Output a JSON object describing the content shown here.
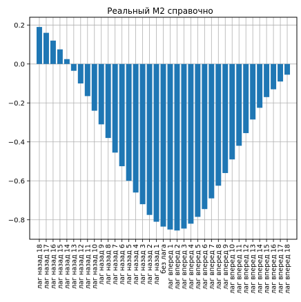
{
  "chart_data": {
    "type": "bar",
    "title": "Реальный М2 справочно",
    "xlabel": "",
    "ylabel": "",
    "ylim": [
      -0.9,
      0.24
    ],
    "yticks": [
      0.2,
      0.0,
      -0.2,
      -0.4,
      -0.6,
      -0.8
    ],
    "ytick_labels": [
      "0.2",
      "0.0",
      "−0.2",
      "−0.4",
      "−0.6",
      "−0.8"
    ],
    "grid": true,
    "bar_color": "#1f77b4",
    "categories": [
      "лаг назад 18",
      "лаг назад 17",
      "лаг назад 16",
      "лаг назад 15",
      "лаг назад 14",
      "лаг назад 13",
      "лаг назад 12",
      "лаг назад 11",
      "лаг назад 10",
      "лаг назад 9",
      "лаг назад 8",
      "лаг назад 7",
      "лаг назад 6",
      "лаг назад 5",
      "лаг назад 4",
      "лаг назад 3",
      "лаг назад 2",
      "лаг назад 1",
      "без лага",
      "лаг вперед 1",
      "лаг вперед 2",
      "лаг вперед 3",
      "лаг вперед 4",
      "лаг вперед 5",
      "лаг вперед 6",
      "лаг вперед 7",
      "лаг вперед 8",
      "лаг вперед 9",
      "лаг вперед 10",
      "лаг вперед 11",
      "лаг вперед 12",
      "лаг вперед 13",
      "лаг вперед 14",
      "лаг вперед 15",
      "лаг вперед 16",
      "лаг вперед 17",
      "лаг вперед 18"
    ],
    "values": [
      0.19,
      0.16,
      0.12,
      0.075,
      0.025,
      -0.035,
      -0.1,
      -0.165,
      -0.24,
      -0.31,
      -0.38,
      -0.455,
      -0.525,
      -0.6,
      -0.66,
      -0.72,
      -0.775,
      -0.81,
      -0.835,
      -0.85,
      -0.855,
      -0.845,
      -0.82,
      -0.785,
      -0.745,
      -0.69,
      -0.625,
      -0.56,
      -0.49,
      -0.42,
      -0.355,
      -0.285,
      -0.225,
      -0.17,
      -0.13,
      -0.09,
      -0.055
    ]
  }
}
